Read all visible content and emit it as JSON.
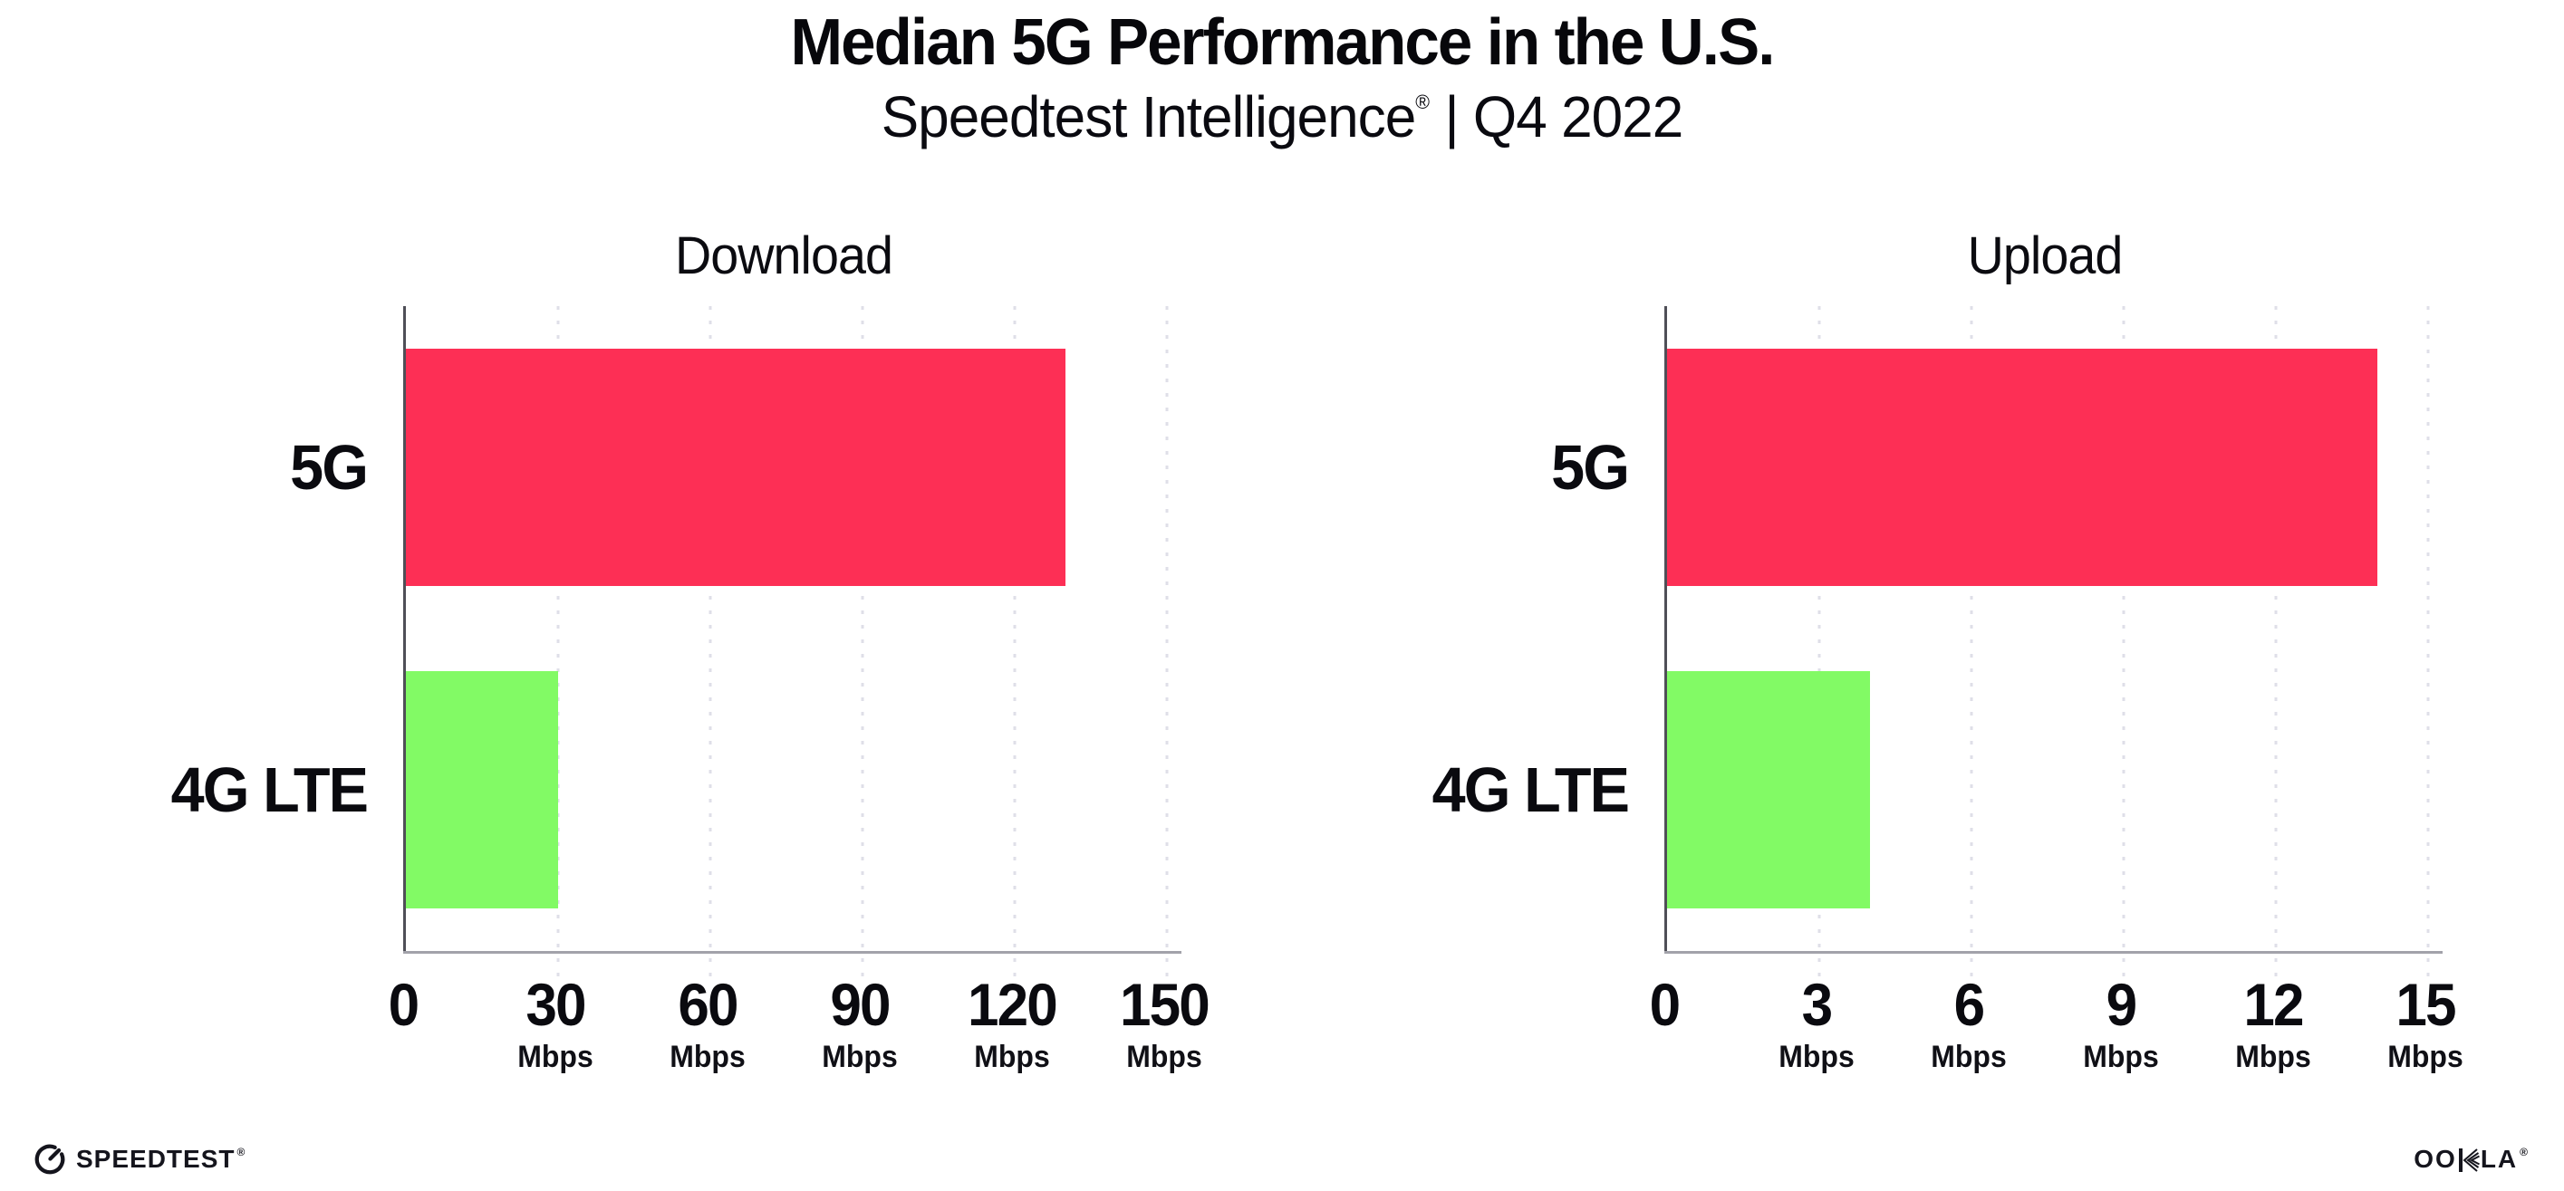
{
  "header": {
    "title": "Median 5G Performance in the U.S.",
    "subtitle_brand": "Speedtest Intelligence",
    "subtitle_reg": "®",
    "subtitle_rest": "| Q4 2022"
  },
  "footer": {
    "speedtest_label": "SPEEDTEST",
    "speedtest_reg": "®",
    "ookla_label": "OOKLA",
    "ookla_reg": "®"
  },
  "colors": {
    "bar_5g": "#fd2f55",
    "bar_4g_lte": "#82fa65",
    "gridline": "#dfdfe8",
    "y_axis_line": "#4f4f57",
    "x_axis_line": "#a2a2aa",
    "text": "#0a0a0f",
    "background": "#ffffff"
  },
  "chart_data": [
    {
      "type": "bar",
      "orientation": "horizontal",
      "title": "Download",
      "categories": [
        "5G",
        "4G LTE"
      ],
      "values": [
        130,
        30
      ],
      "unit": "Mbps",
      "xlim": [
        0,
        150
      ],
      "xticks": [
        0,
        30,
        60,
        90,
        120,
        150
      ],
      "bar_colors": [
        "#fd2f55",
        "#82fa65"
      ],
      "grid": "dotted-vertical-at-ticks",
      "legend": "none"
    },
    {
      "type": "bar",
      "orientation": "horizontal",
      "title": "Upload",
      "categories": [
        "5G",
        "4G LTE"
      ],
      "values": [
        14,
        4
      ],
      "unit": "Mbps",
      "xlim": [
        0,
        15
      ],
      "xticks": [
        0,
        3,
        6,
        9,
        12,
        15
      ],
      "bar_colors": [
        "#fd2f55",
        "#82fa65"
      ],
      "grid": "dotted-vertical-at-ticks",
      "legend": "none"
    }
  ]
}
